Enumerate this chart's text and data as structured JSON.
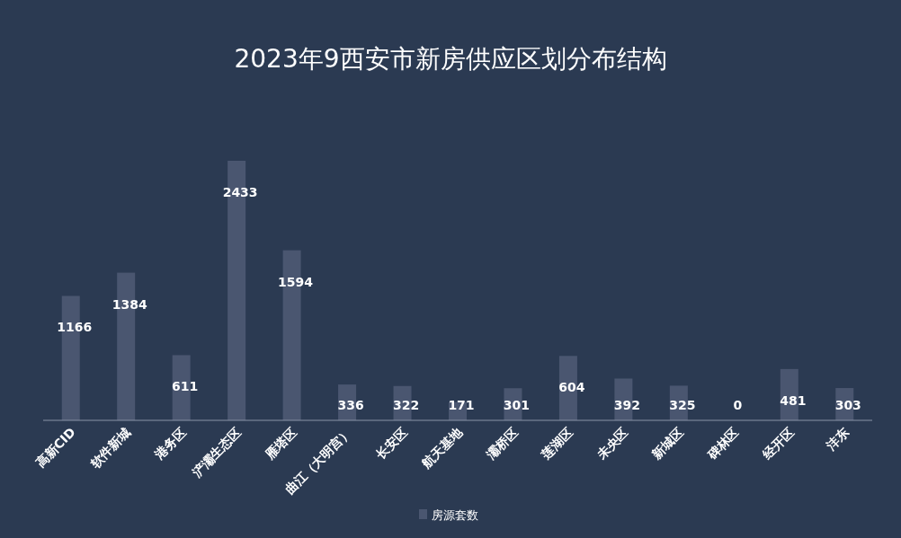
{
  "chart_data": {
    "type": "bar",
    "title": "2023年9西安市新房供应区划分布结构",
    "categories": [
      "高新CID",
      "软件新城",
      "港务区",
      "浐灞生态区",
      "雁塔区",
      "曲江（大明宫）",
      "长安区",
      "航天基地",
      "灞桥区",
      "莲湖区",
      "未央区",
      "新城区",
      "碑林区",
      "经开区",
      "沣东"
    ],
    "series": [
      {
        "name": "房源套数",
        "color": "#4a5670",
        "values": [
          1166,
          1384,
          611,
          2433,
          1594,
          336,
          322,
          171,
          301,
          604,
          392,
          325,
          0,
          481,
          303
        ]
      }
    ],
    "data_labels": true,
    "legend": "bottom",
    "grid": false
  }
}
